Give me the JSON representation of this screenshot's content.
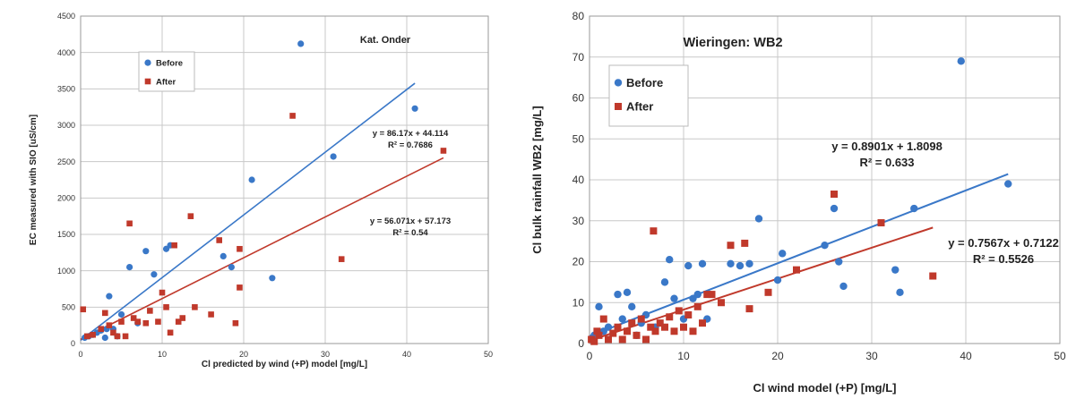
{
  "chart_data": [
    {
      "type": "scatter",
      "title": "Kat. Onder",
      "xlabel": "Cl predicted by wind (+P) model  [mg/L]",
      "ylabel": "EC measured with SIO  [uS/cm]",
      "xlim": [
        0,
        50
      ],
      "ylim": [
        0,
        4500
      ],
      "xticks": [
        0,
        10,
        20,
        30,
        40,
        50
      ],
      "yticks": [
        0,
        500,
        1000,
        1500,
        2000,
        2500,
        3000,
        3500,
        4000,
        4500
      ],
      "grid": true,
      "legend_position": "top-left",
      "series": [
        {
          "name": "Before",
          "color": "#3a78c8",
          "marker": "circle",
          "points": [
            [
              0.5,
              80
            ],
            [
              1,
              100
            ],
            [
              1.5,
              120
            ],
            [
              2,
              150
            ],
            [
              2.5,
              180
            ],
            [
              3,
              80
            ],
            [
              3.2,
              200
            ],
            [
              3.5,
              650
            ],
            [
              4,
              200
            ],
            [
              4.5,
              100
            ],
            [
              5,
              400
            ],
            [
              6,
              1050
            ],
            [
              7,
              280
            ],
            [
              8,
              1270
            ],
            [
              9,
              950
            ],
            [
              10.5,
              1300
            ],
            [
              11,
              1350
            ],
            [
              17.5,
              1200
            ],
            [
              18.5,
              1050
            ],
            [
              21,
              2250
            ],
            [
              23.5,
              900
            ],
            [
              27,
              4120
            ],
            [
              31,
              2570
            ],
            [
              41,
              3230
            ]
          ],
          "trendline": {
            "slope": 86.17,
            "intercept": 44.114,
            "equation": "y = 86.17x + 44.114",
            "r2": "R² = 0.7686",
            "x_range": [
              0,
              41
            ]
          }
        },
        {
          "name": "After",
          "color": "#c0392b",
          "marker": "square",
          "points": [
            [
              0.3,
              470
            ],
            [
              0.8,
              100
            ],
            [
              1.5,
              120
            ],
            [
              2.5,
              200
            ],
            [
              3,
              420
            ],
            [
              3.5,
              250
            ],
            [
              4,
              150
            ],
            [
              4.5,
              100
            ],
            [
              5,
              300
            ],
            [
              5.5,
              100
            ],
            [
              6,
              1650
            ],
            [
              6.5,
              350
            ],
            [
              7,
              300
            ],
            [
              8,
              280
            ],
            [
              8.5,
              450
            ],
            [
              9.5,
              300
            ],
            [
              10,
              700
            ],
            [
              10.5,
              500
            ],
            [
              11,
              150
            ],
            [
              11.5,
              1350
            ],
            [
              12,
              300
            ],
            [
              12.5,
              350
            ],
            [
              13.5,
              1750
            ],
            [
              14,
              500
            ],
            [
              16,
              400
            ],
            [
              17,
              1420
            ],
            [
              19,
              280
            ],
            [
              19.5,
              1300
            ],
            [
              19.5,
              770
            ],
            [
              26,
              3130
            ],
            [
              32,
              1160
            ],
            [
              44.5,
              2650
            ]
          ],
          "trendline": {
            "slope": 56.071,
            "intercept": 57.173,
            "equation": "y = 56.071x + 57.173",
            "r2": "R² = 0.54",
            "x_range": [
              0,
              44.5
            ]
          }
        }
      ]
    },
    {
      "type": "scatter",
      "title": "Wieringen:  WB2",
      "xlabel": "Cl wind model (+P)  [mg/L]",
      "ylabel": "Cl bulk rainfall WB2  [mg/L]",
      "xlim": [
        0,
        50
      ],
      "ylim": [
        0,
        80
      ],
      "xticks": [
        0,
        10,
        20,
        30,
        40,
        50
      ],
      "yticks": [
        0,
        10,
        20,
        30,
        40,
        50,
        60,
        70,
        80
      ],
      "grid": true,
      "legend_position": "top-left",
      "series": [
        {
          "name": "Before",
          "color": "#3a78c8",
          "marker": "circle",
          "points": [
            [
              0.5,
              2
            ],
            [
              1,
              9
            ],
            [
              1.5,
              3
            ],
            [
              2,
              4
            ],
            [
              3,
              12
            ],
            [
              3.5,
              6
            ],
            [
              4,
              12.5
            ],
            [
              4.5,
              9
            ],
            [
              5,
              2
            ],
            [
              5.5,
              5
            ],
            [
              6,
              7
            ],
            [
              7,
              4
            ],
            [
              8,
              15
            ],
            [
              8.5,
              20.5
            ],
            [
              9,
              11
            ],
            [
              10,
              6
            ],
            [
              10.5,
              19
            ],
            [
              11,
              11
            ],
            [
              11.5,
              12
            ],
            [
              12,
              19.5
            ],
            [
              12.5,
              6
            ],
            [
              15,
              19.5
            ],
            [
              16,
              19
            ],
            [
              17,
              19.5
            ],
            [
              18,
              30.5
            ],
            [
              20,
              15.5
            ],
            [
              20.5,
              22
            ],
            [
              25,
              24
            ],
            [
              26,
              33
            ],
            [
              26.5,
              20
            ],
            [
              27,
              14
            ],
            [
              32.5,
              18
            ],
            [
              33,
              12.5
            ],
            [
              34.5,
              33
            ],
            [
              39.5,
              69
            ],
            [
              44.5,
              39
            ]
          ],
          "trendline": {
            "slope": 0.8901,
            "intercept": 1.8098,
            "equation": "y = 0.8901x + 1.8098",
            "r2": "R² = 0.633",
            "x_range": [
              0,
              44.5
            ]
          }
        },
        {
          "name": "After",
          "color": "#c0392b",
          "marker": "square",
          "points": [
            [
              0.2,
              1
            ],
            [
              0.5,
              0.5
            ],
            [
              0.8,
              3
            ],
            [
              1,
              2
            ],
            [
              1.5,
              6
            ],
            [
              2,
              1
            ],
            [
              2.5,
              2.5
            ],
            [
              3,
              4
            ],
            [
              3.5,
              1
            ],
            [
              4,
              3
            ],
            [
              4.5,
              5
            ],
            [
              5,
              2
            ],
            [
              5.5,
              6
            ],
            [
              6,
              1
            ],
            [
              6.5,
              4
            ],
            [
              6.8,
              27.5
            ],
            [
              7,
              3
            ],
            [
              7.5,
              5
            ],
            [
              8,
              4
            ],
            [
              8.5,
              6.5
            ],
            [
              9,
              3
            ],
            [
              9.5,
              8
            ],
            [
              10,
              4
            ],
            [
              10.5,
              7
            ],
            [
              11,
              3
            ],
            [
              11.5,
              9
            ],
            [
              12,
              5
            ],
            [
              12.5,
              12
            ],
            [
              13,
              12
            ],
            [
              14,
              10
            ],
            [
              15,
              24
            ],
            [
              16.5,
              24.5
            ],
            [
              17,
              8.5
            ],
            [
              19,
              12.5
            ],
            [
              22,
              18
            ],
            [
              26,
              36.5
            ],
            [
              31,
              29.5
            ],
            [
              36.5,
              16.5
            ]
          ],
          "trendline": {
            "slope": 0.7567,
            "intercept": 0.7122,
            "equation": "y = 0.7567x + 0.7122",
            "r2": "R² = 0.5526",
            "x_range": [
              0,
              36.5
            ]
          }
        }
      ]
    }
  ]
}
